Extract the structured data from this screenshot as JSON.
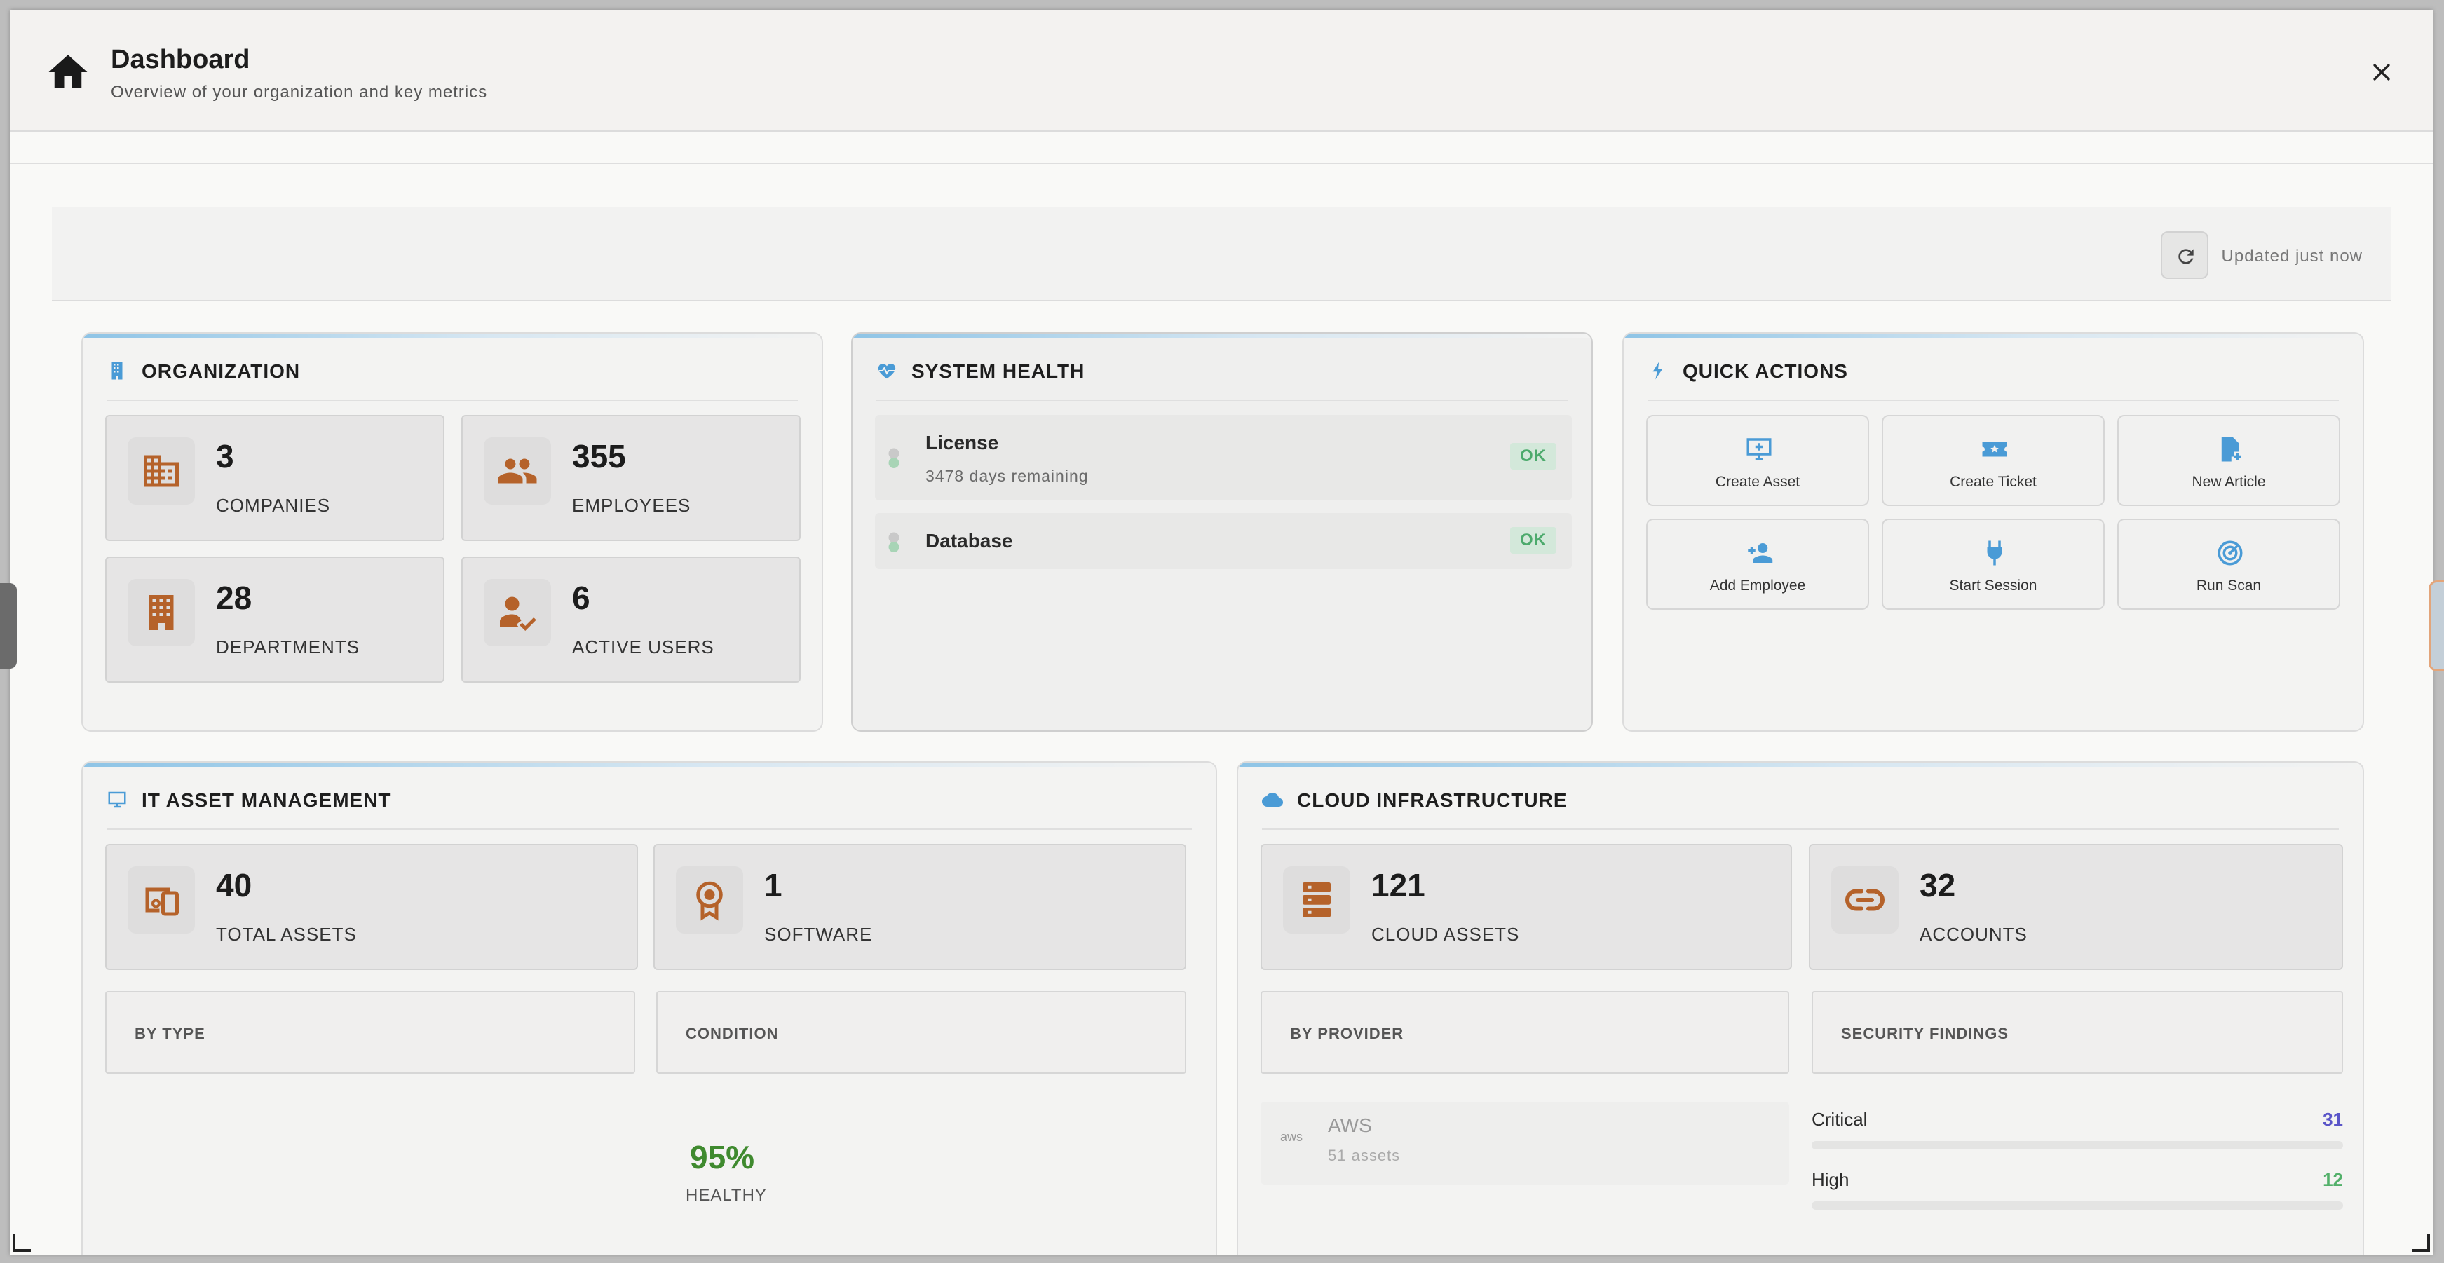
{
  "header": {
    "title": "Dashboard",
    "subtitle": "Overview of your organization and key metrics"
  },
  "toolbar": {
    "updated_text": "Updated just now"
  },
  "organization": {
    "title": "ORGANIZATION",
    "stats": [
      {
        "value": "3",
        "label": "COMPANIES",
        "icon": "building-icon"
      },
      {
        "value": "355",
        "label": "EMPLOYEES",
        "icon": "people-icon"
      },
      {
        "value": "28",
        "label": "DEPARTMENTS",
        "icon": "office-building-icon"
      },
      {
        "value": "6",
        "label": "ACTIVE USERS",
        "icon": "user-check-icon"
      }
    ]
  },
  "system_health": {
    "title": "SYSTEM HEALTH",
    "items": [
      {
        "name": "License",
        "detail": "3478 days remaining",
        "status": "OK"
      },
      {
        "name": "Database",
        "status": "OK"
      }
    ]
  },
  "quick_actions": {
    "title": "QUICK ACTIONS",
    "actions": [
      {
        "label": "Create Asset",
        "icon": "monitor-plus-icon"
      },
      {
        "label": "Create Ticket",
        "icon": "ticket-icon"
      },
      {
        "label": "New Article",
        "icon": "file-plus-icon"
      },
      {
        "label": "Add Employee",
        "icon": "person-add-icon"
      },
      {
        "label": "Start Session",
        "icon": "plug-icon"
      },
      {
        "label": "Run Scan",
        "icon": "radar-icon"
      }
    ]
  },
  "it_assets": {
    "title": "IT ASSET MANAGEMENT",
    "stats": [
      {
        "value": "40",
        "label": "TOTAL ASSETS",
        "icon": "devices-icon"
      },
      {
        "value": "1",
        "label": "SOFTWARE",
        "icon": "award-icon"
      }
    ],
    "by_type_label": "BY TYPE",
    "condition_label": "CONDITION",
    "healthy_percent": "95%",
    "healthy_label": "HEALTHY"
  },
  "cloud": {
    "title": "CLOUD INFRASTRUCTURE",
    "stats": [
      {
        "value": "121",
        "label": "CLOUD ASSETS",
        "icon": "server-icon"
      },
      {
        "value": "32",
        "label": "ACCOUNTS",
        "icon": "link-icon"
      }
    ],
    "by_provider_label": "BY PROVIDER",
    "security_findings_label": "SECURITY FINDINGS",
    "providers": [
      {
        "name": "AWS",
        "count": "51 assets",
        "logo": "aws"
      }
    ],
    "findings": [
      {
        "label": "Critical",
        "value": "31",
        "color": "#5a55c8"
      },
      {
        "label": "High",
        "value": "12",
        "color": "#52b06a"
      }
    ]
  },
  "colors": {
    "accent": "#4a9bd6",
    "stat_icon": "#b5622a",
    "ok_text": "#4caa6c",
    "ok_bg": "#d3e8da",
    "healthy": "#3f8a2f"
  }
}
